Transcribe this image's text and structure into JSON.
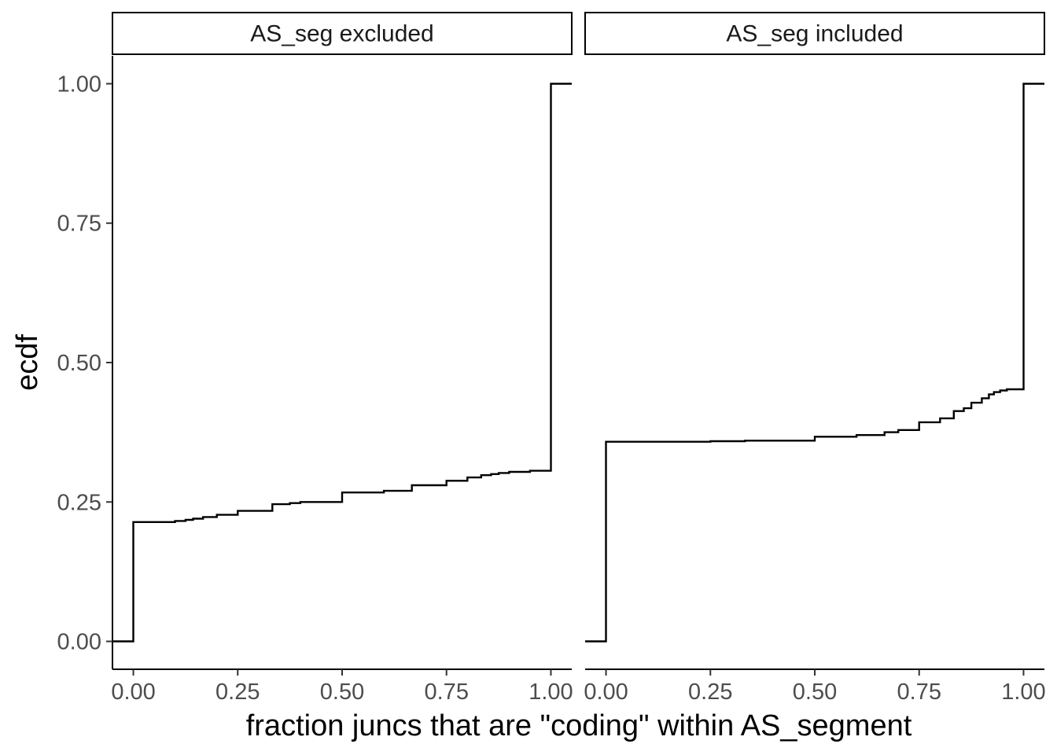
{
  "chart_data": {
    "type": "line",
    "title": "",
    "xlabel": "fraction juncs that are \"coding\" within AS_segment",
    "ylabel": "ecdf",
    "xlim": [
      -0.05,
      1.05
    ],
    "ylim": [
      -0.05,
      1.05
    ],
    "x_ticks": [
      0,
      0.25,
      0.5,
      0.75,
      1
    ],
    "x_tick_labels": [
      "0.00",
      "0.25",
      "0.50",
      "0.75",
      "1.00"
    ],
    "y_ticks": [
      0,
      0.25,
      0.5,
      0.75,
      1
    ],
    "y_tick_labels": [
      "0.00",
      "0.25",
      "0.50",
      "0.75",
      "1.00"
    ],
    "grid": false,
    "legend": "none",
    "line_color": "#000000",
    "panels": [
      {
        "strip_label": "AS_seg excluded",
        "step_points": [
          [
            -0.05,
            0.0
          ],
          [
            0.0,
            0.214
          ],
          [
            0.1,
            0.216
          ],
          [
            0.125,
            0.218
          ],
          [
            0.143,
            0.22
          ],
          [
            0.167,
            0.223
          ],
          [
            0.2,
            0.227
          ],
          [
            0.25,
            0.234
          ],
          [
            0.333,
            0.246
          ],
          [
            0.375,
            0.248
          ],
          [
            0.4,
            0.25
          ],
          [
            0.5,
            0.267
          ],
          [
            0.6,
            0.27
          ],
          [
            0.667,
            0.28
          ],
          [
            0.75,
            0.288
          ],
          [
            0.8,
            0.294
          ],
          [
            0.833,
            0.298
          ],
          [
            0.857,
            0.3
          ],
          [
            0.875,
            0.302
          ],
          [
            0.9,
            0.304
          ],
          [
            0.95,
            0.306
          ],
          [
            1.0,
            1.0
          ],
          [
            1.05,
            1.0
          ]
        ]
      },
      {
        "strip_label": "AS_seg included",
        "step_points": [
          [
            -0.05,
            0.0
          ],
          [
            0.0,
            0.358
          ],
          [
            0.25,
            0.359
          ],
          [
            0.333,
            0.36
          ],
          [
            0.5,
            0.367
          ],
          [
            0.6,
            0.37
          ],
          [
            0.667,
            0.375
          ],
          [
            0.7,
            0.379
          ],
          [
            0.75,
            0.393
          ],
          [
            0.8,
            0.4
          ],
          [
            0.833,
            0.413
          ],
          [
            0.857,
            0.418
          ],
          [
            0.875,
            0.428
          ],
          [
            0.9,
            0.436
          ],
          [
            0.917,
            0.443
          ],
          [
            0.929,
            0.447
          ],
          [
            0.944,
            0.45
          ],
          [
            0.96,
            0.452
          ],
          [
            1.0,
            1.0
          ],
          [
            1.05,
            1.0
          ]
        ]
      }
    ]
  }
}
